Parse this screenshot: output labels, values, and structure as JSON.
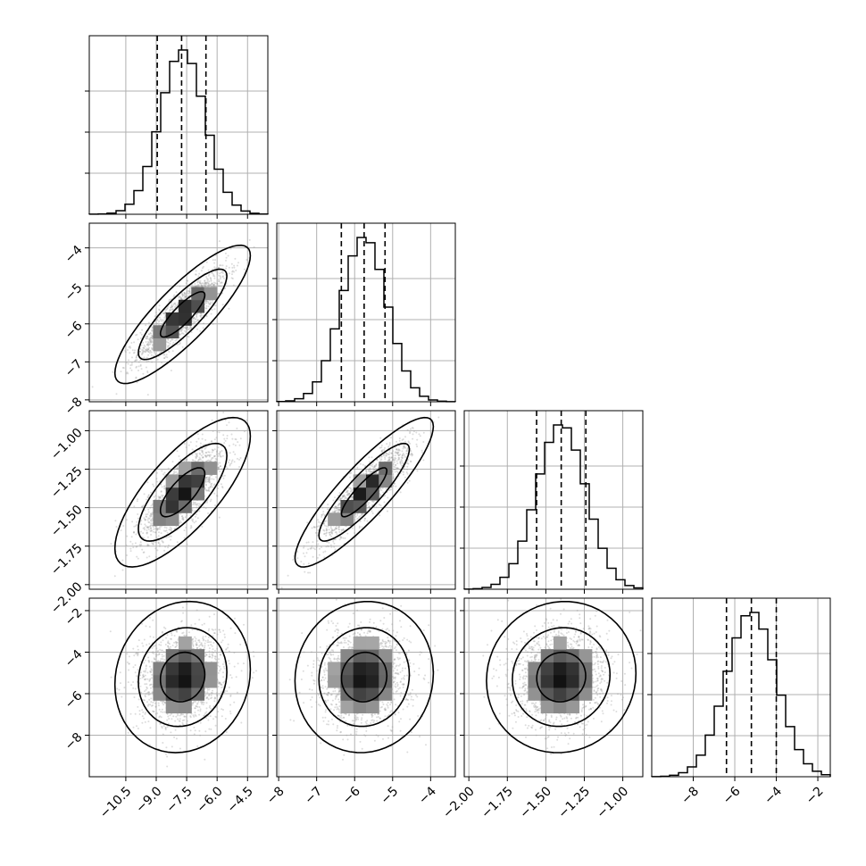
{
  "chart_data": {
    "type": "corner",
    "params": [
      {
        "mean": -7.7,
        "std": 1.1,
        "axis_range": [
          -12.3,
          -3.5
        ],
        "ticks": [
          -10.5,
          -9.0,
          -7.5,
          -6.0,
          -4.5
        ],
        "tick_labels": [
          "−10.5",
          "−9.0",
          "−7.5",
          "−6.0",
          "−4.5"
        ],
        "quantiles": [
          -8.95,
          -7.75,
          -6.55
        ],
        "grid": true
      },
      {
        "mean": -5.75,
        "std": 0.6,
        "axis_range": [
          -8.05,
          -3.35
        ],
        "ticks": [
          -8,
          -7,
          -6,
          -5,
          -4
        ],
        "tick_labels": [
          "−8",
          "−7",
          "−6",
          "−5",
          "−4"
        ],
        "quantiles": [
          -6.35,
          -5.75,
          -5.2
        ],
        "grid": true
      },
      {
        "mean": -1.4,
        "std": 0.16,
        "axis_range": [
          -2.03,
          -0.87
        ],
        "ticks": [
          -2.0,
          -1.75,
          -1.5,
          -1.25,
          -1.0
        ],
        "tick_labels": [
          "−2.00",
          "−1.75",
          "−1.50",
          "−1.25",
          "−1.00"
        ],
        "quantiles": [
          -1.56,
          -1.4,
          -1.24
        ],
        "grid": true
      },
      {
        "mean": -5.2,
        "std": 1.2,
        "axis_range": [
          -10.0,
          -1.4
        ],
        "ticks": [
          -8,
          -6,
          -4,
          -2
        ],
        "tick_labels": [
          "−8",
          "−6",
          "−4",
          "−2"
        ],
        "quantiles": [
          -6.4,
          -5.2,
          -4.0
        ],
        "grid": true
      }
    ],
    "correlations": {
      "1-0": 0.85,
      "2-0": 0.75,
      "2-1": 0.88,
      "3-0": 0.1,
      "3-1": 0.05,
      "3-2": 0.05
    },
    "histogram_bins": 20,
    "contour_levels": [
      0.39,
      0.86,
      0.99
    ],
    "sample_points_per_panel": 1600
  }
}
